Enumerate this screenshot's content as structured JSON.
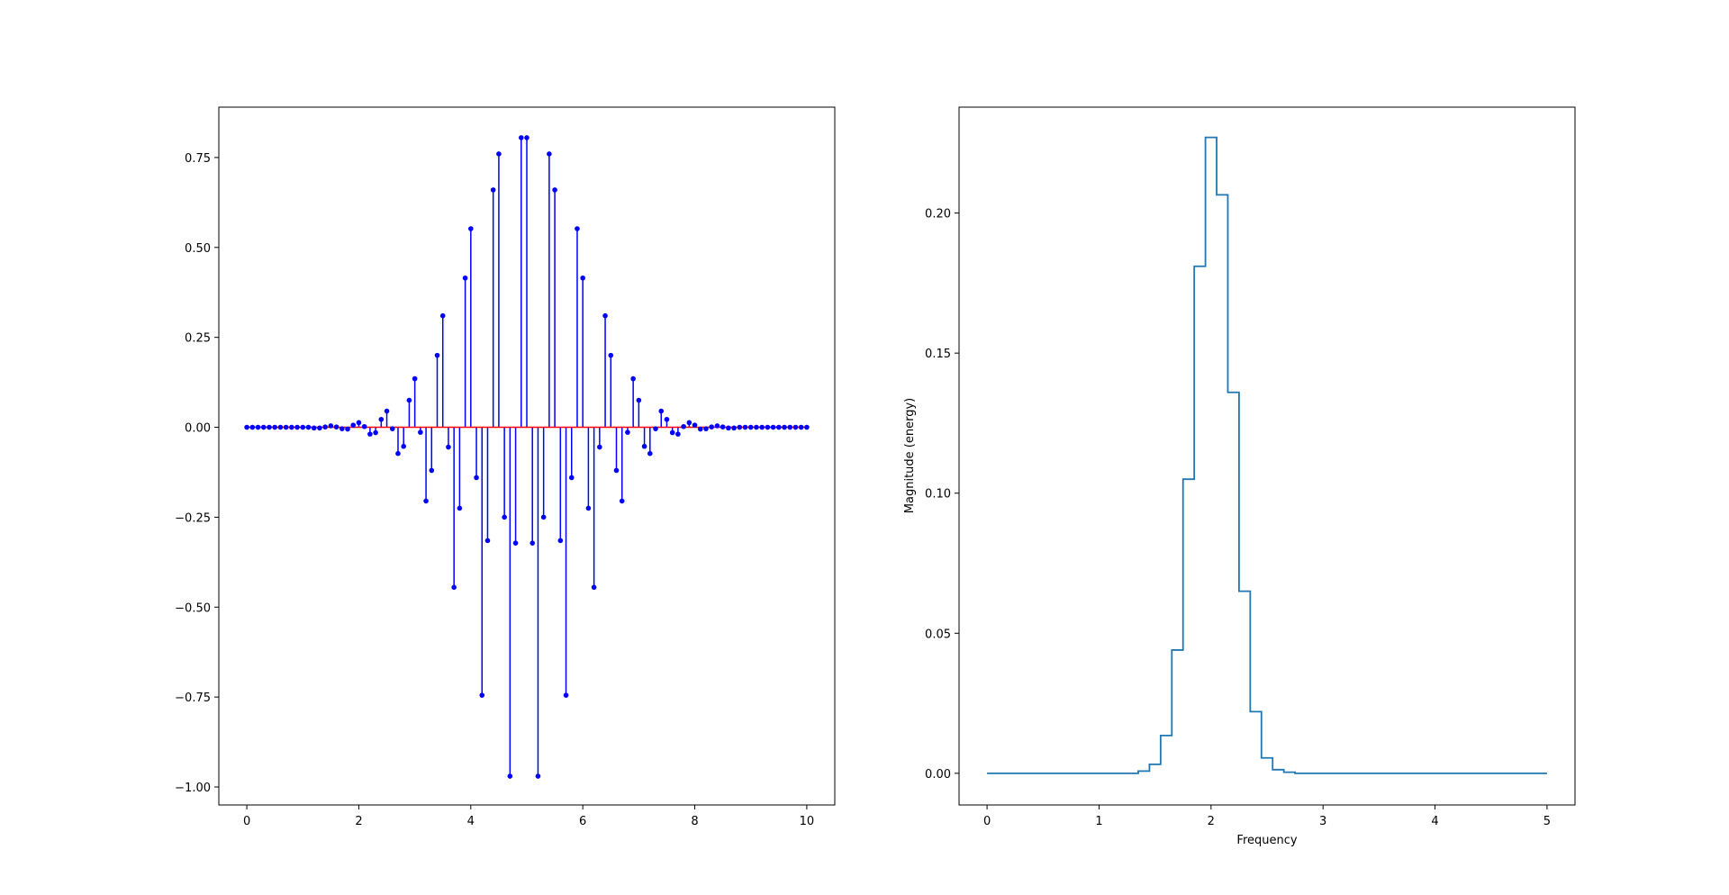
{
  "chart_data": [
    {
      "type": "stem",
      "title": "",
      "xlabel": "",
      "ylabel": "",
      "xlim": [
        -0.5,
        10.5
      ],
      "ylim": [
        -1.05,
        0.89
      ],
      "xticks": [
        0,
        2,
        4,
        6,
        8,
        10
      ],
      "xtick_labels": [
        "0",
        "2",
        "4",
        "6",
        "8",
        "10"
      ],
      "yticks": [
        -1.0,
        -0.75,
        -0.5,
        -0.25,
        0.0,
        0.25,
        0.5,
        0.75
      ],
      "ytick_labels": [
        "−1.00",
        "−0.75",
        "−0.50",
        "−0.25",
        "0.00",
        "0.25",
        "0.50",
        "0.75"
      ],
      "grid": false,
      "colors": {
        "stem": "#0000ff",
        "marker": "#0000ff",
        "baseline": "#ff0000"
      },
      "x": [
        0,
        0.1,
        0.2,
        0.3,
        0.4,
        0.5,
        0.6,
        0.7,
        0.8,
        0.9,
        1,
        1.1,
        1.2,
        1.3,
        1.4,
        1.5,
        1.6,
        1.7,
        1.8,
        1.9,
        2,
        2.1,
        2.2,
        2.3,
        2.4,
        2.5,
        2.6,
        2.7,
        2.8,
        2.9,
        3,
        3.1,
        3.2,
        3.3,
        3.4,
        3.5,
        3.6,
        3.7,
        3.8,
        3.9,
        4,
        4.1,
        4.2,
        4.3,
        4.4,
        4.5,
        4.6,
        4.7,
        4.8,
        4.9,
        5,
        5.1,
        5.2,
        5.3,
        5.4,
        5.5,
        5.6,
        5.7,
        5.8,
        5.9,
        6,
        6.1,
        6.2,
        6.3,
        6.4,
        6.5,
        6.6,
        6.7,
        6.8,
        6.9,
        7,
        7.1,
        7.2,
        7.3,
        7.4,
        7.5,
        7.6,
        7.7,
        7.8,
        7.9,
        8,
        8.1,
        8.2,
        8.3,
        8.4,
        8.5,
        8.6,
        8.7,
        8.8,
        8.9,
        9,
        9.1,
        9.2,
        9.3,
        9.4,
        9.5,
        9.6,
        9.7,
        9.8,
        9.9,
        10
      ],
      "y": [
        0,
        0,
        0,
        0,
        0,
        0,
        0,
        0,
        0,
        0,
        0,
        0,
        -0.002,
        -0.002,
        0.001,
        0.004,
        0.001,
        -0.004,
        -0.005,
        0.006,
        0.013,
        0.002,
        -0.019,
        -0.015,
        0.022,
        0.045,
        -0.004,
        -0.073,
        -0.053,
        0.075,
        0.135,
        -0.014,
        -0.205,
        -0.12,
        0.2,
        0.31,
        -0.055,
        -0.445,
        -0.225,
        0.415,
        0.552,
        -0.14,
        -0.745,
        -0.315,
        0.66,
        0.76,
        -0.25,
        -0.97,
        -0.322,
        0.805,
        0.805,
        -0.322,
        -0.97,
        -0.25,
        0.76,
        0.66,
        -0.315,
        -0.745,
        -0.14,
        0.552,
        0.415,
        -0.225,
        -0.445,
        -0.055,
        0.31,
        0.2,
        -0.12,
        -0.205,
        -0.014,
        0.135,
        0.075,
        -0.053,
        -0.073,
        -0.004,
        0.045,
        0.022,
        -0.015,
        -0.019,
        0.002,
        0.013,
        0.006,
        -0.005,
        -0.004,
        0.001,
        0.004,
        0.001,
        -0.002,
        -0.002,
        0,
        0,
        0,
        0,
        0,
        0,
        0,
        0,
        0,
        0,
        0,
        0,
        0
      ]
    },
    {
      "type": "line",
      "step": "post",
      "title": "",
      "xlabel": "Frequency",
      "ylabel": "Magnitude (energy)",
      "xlim": [
        -0.25,
        5.25
      ],
      "ylim": [
        -0.0113,
        0.2378
      ],
      "xticks": [
        0,
        1,
        2,
        3,
        4,
        5
      ],
      "xtick_labels": [
        "0",
        "1",
        "2",
        "3",
        "4",
        "5"
      ],
      "yticks": [
        0.0,
        0.05,
        0.1,
        0.15,
        0.2
      ],
      "ytick_labels": [
        "0.00",
        "0.05",
        "0.10",
        "0.15",
        "0.20"
      ],
      "grid": false,
      "colors": {
        "line": "#1f77b4"
      },
      "x": [
        0,
        0.1,
        0.2,
        0.3,
        0.4,
        0.5,
        0.6,
        0.7,
        0.8,
        0.9,
        1.0,
        1.1,
        1.2,
        1.35,
        1.45,
        1.55,
        1.65,
        1.75,
        1.85,
        1.95,
        2.05,
        2.15,
        2.25,
        2.35,
        2.45,
        2.55,
        2.65,
        2.75,
        2.85,
        3.0,
        3.5,
        4.0,
        4.5,
        5.0
      ],
      "y": [
        0,
        0,
        0,
        0,
        0,
        0,
        0,
        0,
        0,
        0,
        0,
        0,
        0,
        0.0008,
        0.0032,
        0.0135,
        0.044,
        0.105,
        0.181,
        0.227,
        0.2065,
        0.136,
        0.065,
        0.022,
        0.0055,
        0.0013,
        0.0004,
        0,
        0,
        0,
        0,
        0,
        0,
        0
      ]
    }
  ]
}
